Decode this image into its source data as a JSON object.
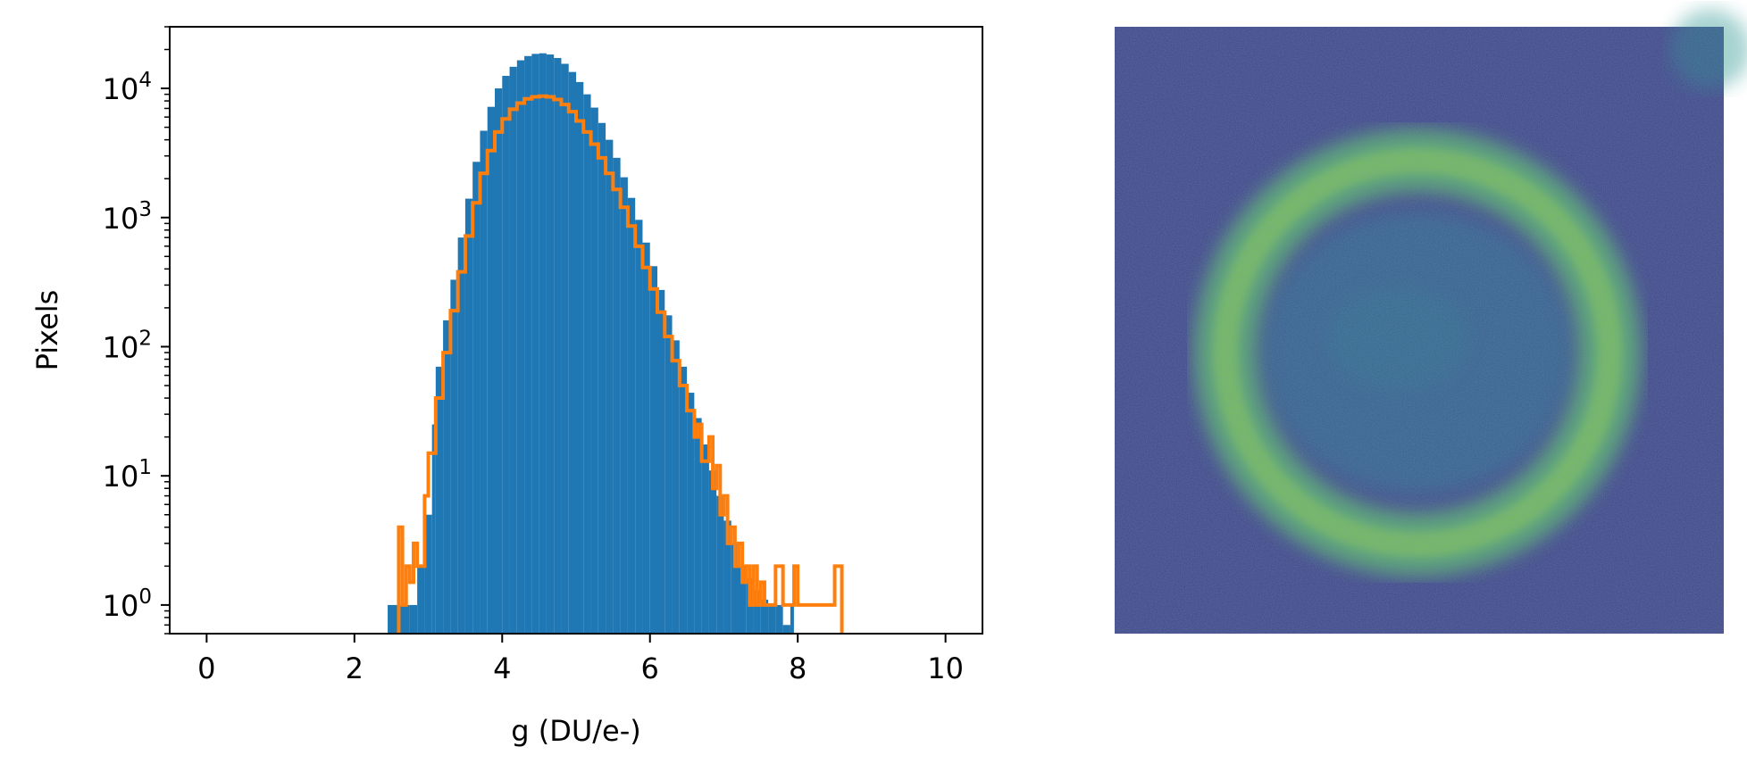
{
  "chart_data": [
    {
      "type": "histogram",
      "xlabel": "g (DU/e-)",
      "ylabel": "Pixels",
      "xlim": [
        -0.5,
        10.5
      ],
      "ylim": [
        0.6,
        30000
      ],
      "yscale": "log",
      "grid": false,
      "x_ticks": [
        0,
        2,
        4,
        6,
        8,
        10
      ],
      "y_ticks": [
        {
          "value": 1,
          "base": "10",
          "exp": "0"
        },
        {
          "value": 10,
          "base": "10",
          "exp": "1"
        },
        {
          "value": 100,
          "base": "10",
          "exp": "2"
        },
        {
          "value": 1000,
          "base": "10",
          "exp": "3"
        },
        {
          "value": 10000,
          "base": "10",
          "exp": "4"
        }
      ],
      "series": [
        {
          "style": "filled",
          "color": "#1f77b4",
          "points": [
            [
              2.45,
              1
            ],
            [
              2.75,
              1
            ],
            [
              2.85,
              2
            ],
            [
              2.95,
              5
            ],
            [
              3.05,
              25
            ],
            [
              3.1,
              70
            ],
            [
              3.2,
              160
            ],
            [
              3.3,
              330
            ],
            [
              3.4,
              700
            ],
            [
              3.5,
              1400
            ],
            [
              3.6,
              2700
            ],
            [
              3.7,
              4700
            ],
            [
              3.8,
              7200
            ],
            [
              3.9,
              10000
            ],
            [
              4.0,
              12500
            ],
            [
              4.1,
              14700
            ],
            [
              4.2,
              16500
            ],
            [
              4.3,
              17800
            ],
            [
              4.4,
              18500
            ],
            [
              4.5,
              18700
            ],
            [
              4.6,
              18300
            ],
            [
              4.7,
              17200
            ],
            [
              4.8,
              15500
            ],
            [
              4.9,
              13400
            ],
            [
              5.0,
              11200
            ],
            [
              5.1,
              9000
            ],
            [
              5.2,
              7100
            ],
            [
              5.3,
              5400
            ],
            [
              5.4,
              4000
            ],
            [
              5.5,
              2900
            ],
            [
              5.6,
              2050
            ],
            [
              5.7,
              1420
            ],
            [
              5.8,
              960
            ],
            [
              5.9,
              640
            ],
            [
              6.0,
              420
            ],
            [
              6.1,
              275
            ],
            [
              6.2,
              175
            ],
            [
              6.3,
              112
            ],
            [
              6.4,
              70
            ],
            [
              6.5,
              44
            ],
            [
              6.6,
              28
            ],
            [
              6.7,
              17.5
            ],
            [
              6.8,
              11
            ],
            [
              6.9,
              7
            ],
            [
              7.0,
              4.5
            ],
            [
              7.1,
              3
            ],
            [
              7.2,
              2
            ],
            [
              7.3,
              1.6
            ],
            [
              7.4,
              1.3
            ],
            [
              7.5,
              1.1
            ],
            [
              7.6,
              1
            ],
            [
              7.7,
              1
            ],
            [
              7.8,
              0.7
            ],
            [
              7.9,
              1
            ]
          ]
        },
        {
          "style": "step",
          "color": "#ff7f0e",
          "points": [
            [
              2.6,
              4
            ],
            [
              2.65,
              1
            ],
            [
              2.7,
              2
            ],
            [
              2.75,
              1.5
            ],
            [
              2.8,
              3
            ],
            [
              2.85,
              2
            ],
            [
              2.9,
              2
            ],
            [
              2.95,
              7
            ],
            [
              3.0,
              15
            ],
            [
              3.1,
              40
            ],
            [
              3.2,
              90
            ],
            [
              3.3,
              190
            ],
            [
              3.4,
              380
            ],
            [
              3.5,
              720
            ],
            [
              3.6,
              1300
            ],
            [
              3.7,
              2200
            ],
            [
              3.8,
              3300
            ],
            [
              3.9,
              4600
            ],
            [
              4.0,
              5800
            ],
            [
              4.1,
              6900
            ],
            [
              4.2,
              7700
            ],
            [
              4.3,
              8300
            ],
            [
              4.4,
              8600
            ],
            [
              4.5,
              8700
            ],
            [
              4.6,
              8600
            ],
            [
              4.7,
              8200
            ],
            [
              4.8,
              7500
            ],
            [
              4.9,
              6600
            ],
            [
              5.0,
              5600
            ],
            [
              5.1,
              4600
            ],
            [
              5.2,
              3700
            ],
            [
              5.3,
              2900
            ],
            [
              5.4,
              2200
            ],
            [
              5.5,
              1650
            ],
            [
              5.6,
              1200
            ],
            [
              5.7,
              860
            ],
            [
              5.8,
              600
            ],
            [
              5.9,
              410
            ],
            [
              6.0,
              280
            ],
            [
              6.1,
              185
            ],
            [
              6.2,
              120
            ],
            [
              6.3,
              78
            ],
            [
              6.4,
              50
            ],
            [
              6.5,
              32
            ],
            [
              6.6,
              20
            ],
            [
              6.65,
              25
            ],
            [
              6.7,
              13
            ],
            [
              6.8,
              20
            ],
            [
              6.85,
              8
            ],
            [
              6.9,
              12
            ],
            [
              6.95,
              5
            ],
            [
              7.0,
              7
            ],
            [
              7.05,
              3
            ],
            [
              7.1,
              4
            ],
            [
              7.15,
              2
            ],
            [
              7.2,
              3
            ],
            [
              7.25,
              1.5
            ],
            [
              7.3,
              2
            ],
            [
              7.35,
              1
            ],
            [
              7.4,
              2
            ],
            [
              7.45,
              1
            ],
            [
              7.5,
              1.5
            ],
            [
              7.55,
              1
            ],
            [
              7.6,
              1
            ],
            [
              7.7,
              2
            ],
            [
              7.8,
              1
            ],
            [
              7.9,
              1
            ],
            [
              7.95,
              2
            ],
            [
              8.0,
              1
            ],
            [
              8.1,
              1
            ],
            [
              8.2,
              1
            ],
            [
              8.5,
              2
            ]
          ]
        }
      ]
    },
    {
      "type": "heatmap",
      "colormap": "viridis",
      "axes": "off",
      "description_visible": "noisy image with a bright elliptical ring"
    }
  ]
}
